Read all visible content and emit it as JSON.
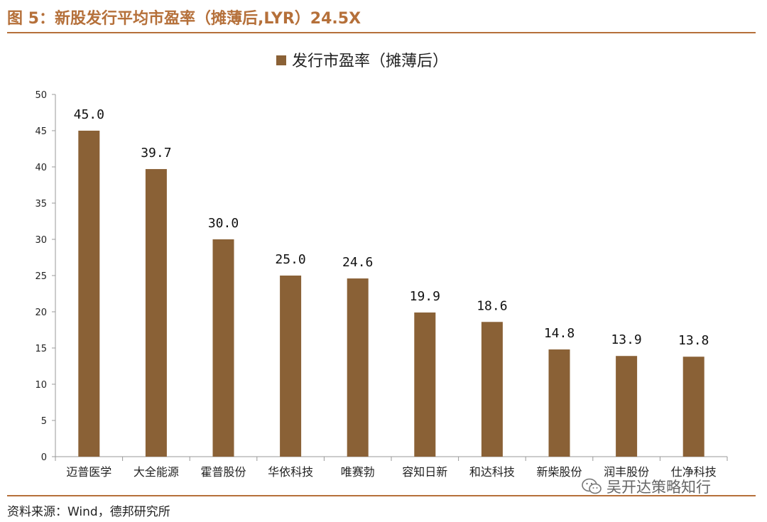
{
  "figure_title": "图 5：新股发行平均市盈率（摊薄后,LYR）24.5X",
  "source": "资料来源：Wind，德邦研究所",
  "watermark": {
    "text": "吴开达策略知行",
    "icon": "wechat-icon"
  },
  "colors": {
    "accent": "#b5703a",
    "bar": "#8a6136"
  },
  "chart_data": {
    "type": "bar",
    "categories": [
      "迈普医学",
      "大全能源",
      "霍普股份",
      "华依科技",
      "唯赛勃",
      "容知日新",
      "和达科技",
      "新柴股份",
      "润丰股份",
      "仕净科技"
    ],
    "series": [
      {
        "name": "发行市盈率（摊薄后）",
        "values": [
          45.0,
          39.7,
          30.0,
          25.0,
          24.6,
          19.9,
          18.6,
          14.8,
          13.9,
          13.8
        ]
      }
    ],
    "data_labels": [
      "45.0",
      "39.7",
      "30.0",
      "25.0",
      "24.6",
      "19.9",
      "18.6",
      "14.8",
      "13.9",
      "13.8"
    ],
    "ylim": [
      0,
      50
    ],
    "yticks": [
      0,
      5,
      10,
      15,
      20,
      25,
      30,
      35,
      40,
      45,
      50
    ],
    "grid": false,
    "legend_position": "top-center"
  }
}
